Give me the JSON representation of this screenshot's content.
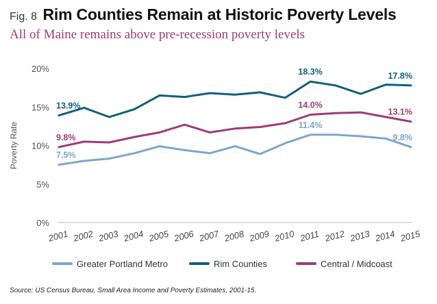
{
  "header": {
    "fig_label": "Fig. 8",
    "title": "Rim Counties Remain at Historic Poverty Levels",
    "subtitle": "All of Maine remains above pre-recession poverty levels"
  },
  "source": "Source: US Census Bureau, Small Area Income and Poverty Estimates, 2001-15.",
  "chart_data": {
    "type": "line",
    "ylabel": "Poverty Rate",
    "ylim": [
      0,
      20
    ],
    "yticks": [
      0,
      5,
      10,
      15,
      20
    ],
    "ytick_labels": [
      "0%",
      "5%",
      "10%",
      "15%",
      "20%"
    ],
    "grid": false,
    "legend_position": "bottom",
    "x": [
      "2001",
      "2002",
      "2003",
      "2004",
      "2005",
      "2006",
      "2007",
      "2008",
      "2009",
      "2010",
      "2011",
      "2012",
      "2013",
      "2014",
      "2015"
    ],
    "series": [
      {
        "name": "Greater Portland Metro",
        "color": "#7aa6cf",
        "values": [
          7.5,
          8.0,
          8.3,
          9.0,
          9.9,
          9.4,
          9.0,
          9.9,
          8.9,
          10.3,
          11.4,
          11.4,
          11.2,
          10.9,
          9.8
        ],
        "labels": [
          {
            "index": 0,
            "text": "7.5%"
          },
          {
            "index": 10,
            "text": "11.4%"
          },
          {
            "index": 14,
            "text": "9.8%"
          }
        ]
      },
      {
        "name": "Rim Counties",
        "color": "#0f5f7e",
        "values": [
          13.9,
          14.9,
          13.7,
          14.7,
          16.5,
          16.3,
          16.8,
          16.6,
          16.9,
          16.2,
          18.3,
          17.8,
          16.7,
          17.9,
          17.8
        ],
        "labels": [
          {
            "index": 0,
            "text": "13.9%"
          },
          {
            "index": 10,
            "text": "18.3%"
          },
          {
            "index": 14,
            "text": "17.8%"
          }
        ]
      },
      {
        "name": "Central / Midcoast",
        "color": "#9e3a78",
        "values": [
          9.8,
          10.5,
          10.4,
          11.1,
          11.7,
          12.7,
          11.7,
          12.2,
          12.4,
          12.9,
          14.0,
          14.2,
          14.3,
          13.7,
          13.1
        ],
        "labels": [
          {
            "index": 0,
            "text": "9.8%"
          },
          {
            "index": 10,
            "text": "14.0%"
          },
          {
            "index": 14,
            "text": "13.1%"
          }
        ]
      }
    ]
  }
}
